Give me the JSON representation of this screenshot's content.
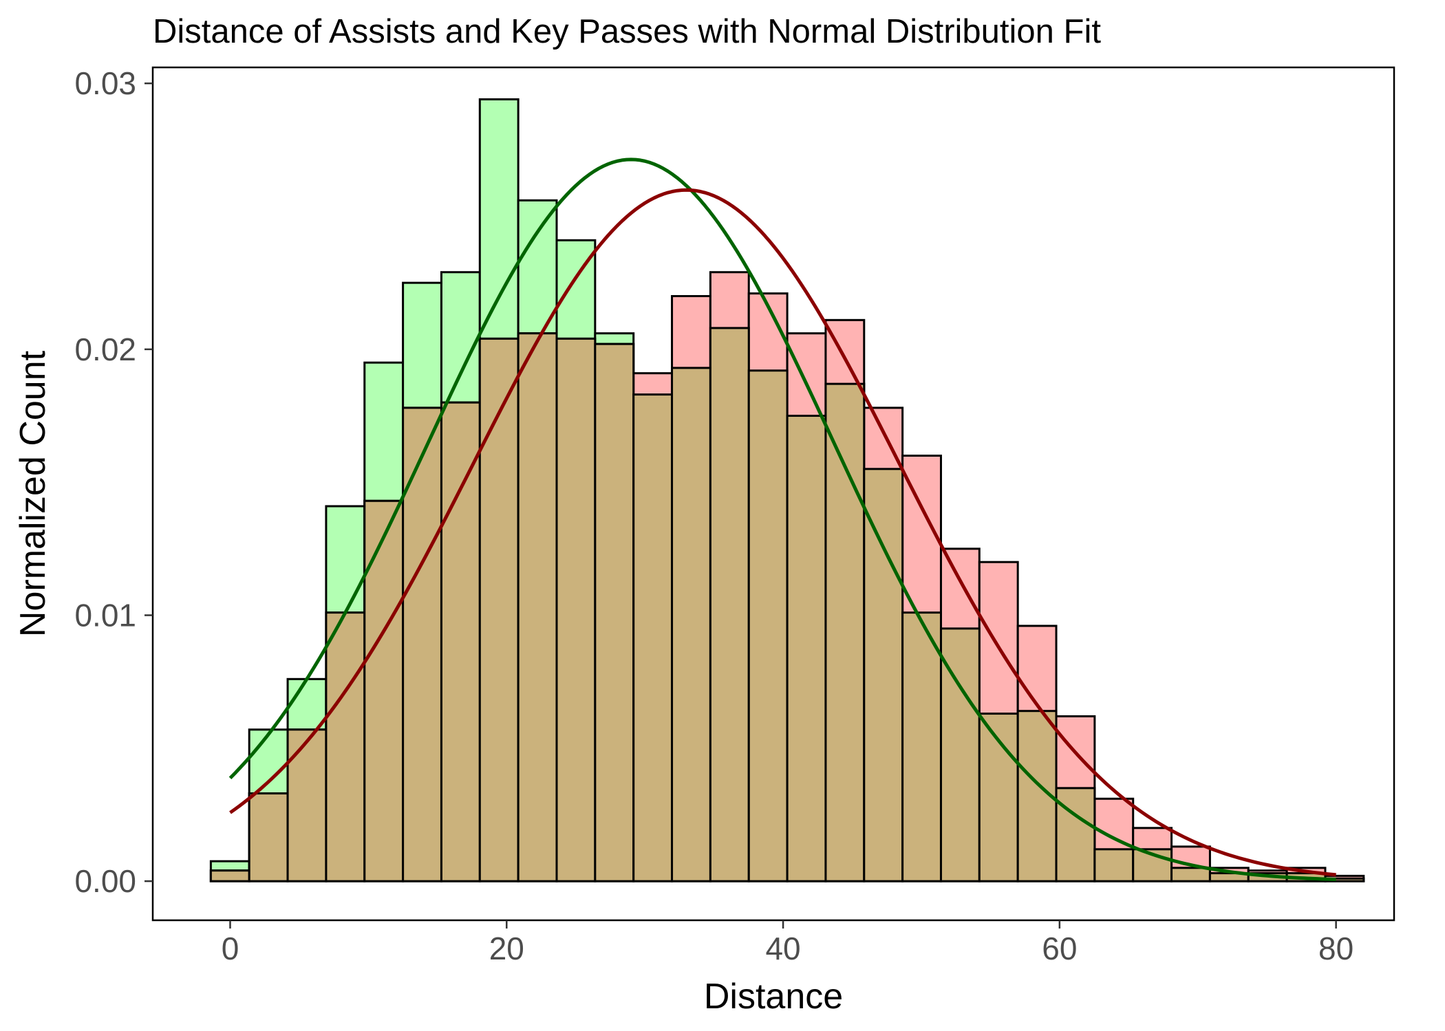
{
  "chart_data": {
    "type": "bar",
    "title": "Distance of Assists and Key Passes with Normal Distribution Fit",
    "xlabel": "Distance",
    "ylabel": "Normalized Count",
    "xlim": [
      -5.6,
      84.2
    ],
    "ylim": [
      -0.00147,
      0.0306
    ],
    "xticks": [
      0,
      20,
      40,
      60,
      80
    ],
    "yticks": [
      0.0,
      0.01,
      0.02,
      0.03
    ],
    "xtick_labels": [
      "0",
      "20",
      "40",
      "60",
      "80"
    ],
    "ytick_labels": [
      "0.00",
      "0.01",
      "0.02",
      "0.03"
    ],
    "grid": false,
    "legend": "none",
    "bin_edges": [
      -1.4,
      1.38,
      4.16,
      6.94,
      9.72,
      12.5,
      15.28,
      18.06,
      20.84,
      23.62,
      26.4,
      29.18,
      31.96,
      34.74,
      37.52,
      40.3,
      43.08,
      45.86,
      48.64,
      51.42,
      54.2,
      56.98,
      59.76,
      62.54,
      65.32,
      68.1,
      70.88,
      73.66,
      76.44,
      79.22,
      82.0
    ],
    "series": [
      {
        "role": "histogram",
        "fill": "#b3ffb3",
        "values": [
          0.00075,
          0.0057,
          0.0076,
          0.0141,
          0.0195,
          0.0225,
          0.0229,
          0.0294,
          0.0256,
          0.0241,
          0.0206,
          0.0183,
          0.0193,
          0.0208,
          0.0192,
          0.0175,
          0.0187,
          0.0155,
          0.0101,
          0.0095,
          0.0063,
          0.0064,
          0.0035,
          0.0012,
          0.0012,
          0.0005,
          0.0003,
          0.0003,
          0.0003,
          0.0001
        ]
      },
      {
        "role": "histogram",
        "fill": "#ffb3b3",
        "values": [
          0.0004,
          0.0033,
          0.0057,
          0.0101,
          0.0143,
          0.0178,
          0.018,
          0.0204,
          0.0206,
          0.0204,
          0.0202,
          0.0191,
          0.022,
          0.0229,
          0.0221,
          0.0206,
          0.0211,
          0.0178,
          0.016,
          0.0125,
          0.012,
          0.0096,
          0.0062,
          0.0031,
          0.002,
          0.0013,
          0.0005,
          0.0004,
          0.0005,
          0.0002
        ]
      },
      {
        "role": "normal-fit",
        "color": "#006400",
        "mean": 29.0,
        "sd": 14.7,
        "x_range": [
          0,
          80
        ]
      },
      {
        "role": "normal-fit",
        "color": "#8b0000",
        "mean": 33.0,
        "sd": 15.35,
        "x_range": [
          0,
          80
        ]
      }
    ],
    "overlap_fill": "#cbb27c",
    "colors": {
      "tick_label": "#4d4d4d",
      "axis": "#000000",
      "background": "#ffffff"
    }
  }
}
